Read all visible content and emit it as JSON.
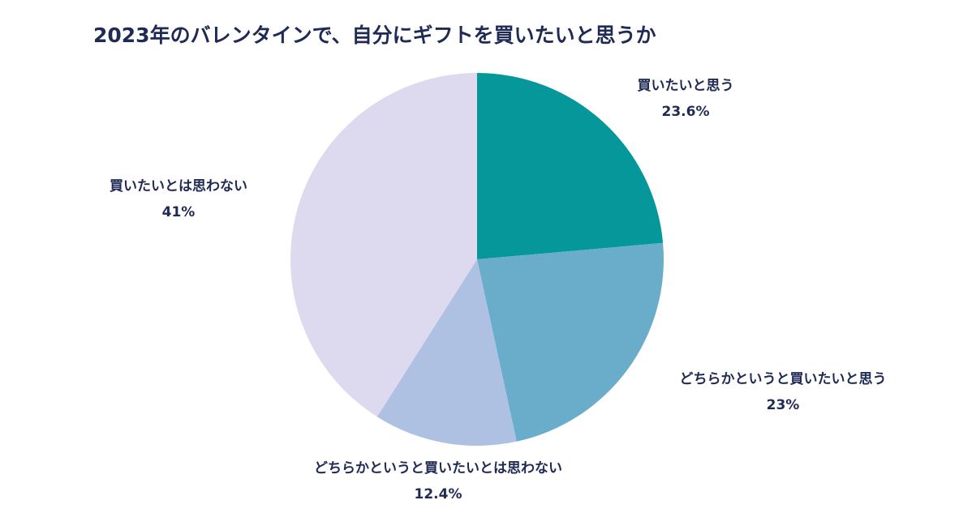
{
  "chart_data": {
    "type": "pie",
    "title": "2023年のバレンタインで、自分にギフトを買いたいと思うか",
    "slices": [
      {
        "label": "買いたいと思う",
        "value": 23.6,
        "display": "23.6%",
        "color": "#06979a"
      },
      {
        "label": "どちらかというと買いたいと思う",
        "value": 23,
        "display": "23%",
        "color": "#6aadca"
      },
      {
        "label": "どちらかというと買いたいとは思わない",
        "value": 12.4,
        "display": "12.4%",
        "color": "#aec1e3"
      },
      {
        "label": "買いたいとは思わない",
        "value": 41,
        "display": "41%",
        "color": "#dddaf0"
      }
    ],
    "legend": "none"
  }
}
